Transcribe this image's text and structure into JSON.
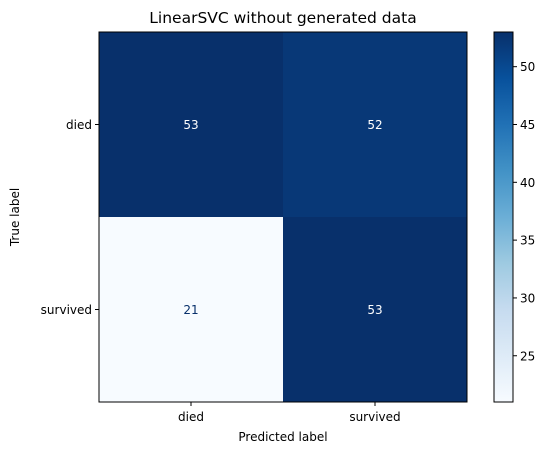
{
  "chart_data": {
    "type": "heatmap",
    "title": "LinearSVC without generated data",
    "xlabel": "Predicted label",
    "ylabel": "True label",
    "x_categories": [
      "died",
      "survived"
    ],
    "y_categories": [
      "died",
      "survived"
    ],
    "matrix": [
      [
        53,
        52
      ],
      [
        21,
        53
      ]
    ],
    "colormap": "Blues",
    "colorbar": {
      "range": [
        21,
        53
      ],
      "ticks": [
        25,
        30,
        35,
        40,
        45,
        50
      ],
      "tick_labels": [
        "25",
        "30",
        "35",
        "40",
        "45",
        "50"
      ]
    }
  }
}
